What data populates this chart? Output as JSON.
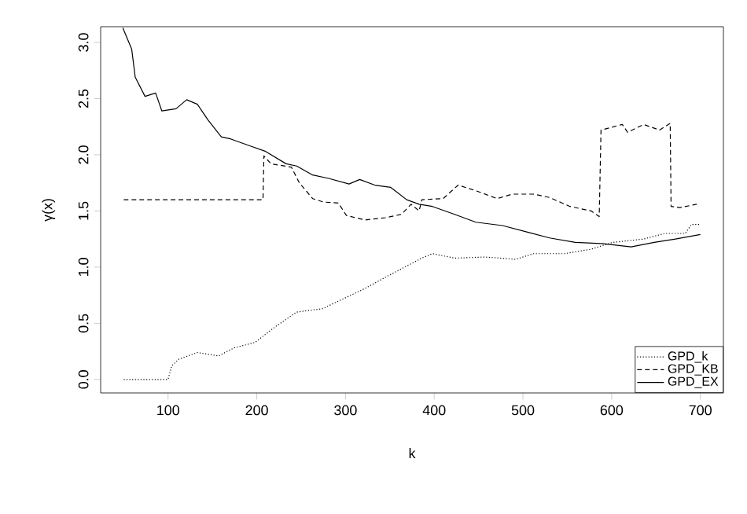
{
  "chart_data": {
    "type": "line",
    "xlabel": "k",
    "ylabel": "γ(x)",
    "xlim": [
      24,
      726
    ],
    "ylim": [
      -0.12,
      3.14
    ],
    "xticks": [
      100,
      200,
      300,
      400,
      500,
      600,
      700
    ],
    "yticks": [
      {
        "value": 0,
        "label": "0.0"
      },
      {
        "value": 0.5,
        "label": "0.5"
      },
      {
        "value": 1,
        "label": "1.0"
      },
      {
        "value": 1.5,
        "label": "1.5"
      },
      {
        "value": 2,
        "label": "2.0"
      },
      {
        "value": 2.5,
        "label": "2.5"
      },
      {
        "value": 3,
        "label": "3.0"
      }
    ],
    "grid": false,
    "legend": "bottom right",
    "marker": "none",
    "series": [
      {
        "name": "GPD_k",
        "color": "#000000",
        "line_style": "dotted",
        "x": [
          50,
          100,
          104,
          112,
          133,
          157,
          174,
          198,
          221,
          245,
          274,
          298,
          322,
          345,
          369,
          386,
          398,
          423,
          457,
          492,
          512,
          547,
          577,
          601,
          636,
          660,
          683,
          690,
          700
        ],
        "values": [
          0,
          0,
          0.12,
          0.18,
          0.24,
          0.21,
          0.28,
          0.33,
          0.47,
          0.6,
          0.63,
          0.72,
          0.81,
          0.91,
          1.01,
          1.08,
          1.12,
          1.08,
          1.09,
          1.07,
          1.12,
          1.12,
          1.16,
          1.22,
          1.25,
          1.3,
          1.3,
          1.38,
          1.38
        ]
      },
      {
        "name": "GPD_KB",
        "color": "#000000",
        "line_style": "dashed",
        "x": [
          50,
          207,
          208,
          216,
          239,
          248,
          263,
          275,
          292,
          301,
          322,
          345,
          363,
          374,
          383,
          386,
          410,
          427,
          447,
          471,
          488,
          512,
          530,
          553,
          577,
          586,
          588,
          612,
          618,
          636,
          654,
          666,
          667,
          677,
          696
        ],
        "values": [
          1.6,
          1.6,
          1.99,
          1.92,
          1.89,
          1.75,
          1.61,
          1.58,
          1.57,
          1.46,
          1.42,
          1.44,
          1.47,
          1.56,
          1.5,
          1.6,
          1.61,
          1.73,
          1.68,
          1.61,
          1.65,
          1.65,
          1.62,
          1.54,
          1.5,
          1.45,
          2.22,
          2.27,
          2.2,
          2.27,
          2.22,
          2.28,
          1.54,
          1.53,
          1.56
        ]
      },
      {
        "name": "GPD_EX",
        "color": "#000000",
        "line_style": "solid",
        "x": [
          49,
          59,
          63,
          74,
          86,
          93,
          109,
          121,
          133,
          145,
          160,
          171,
          192,
          210,
          233,
          245,
          263,
          281,
          304,
          316,
          333,
          351,
          369,
          383,
          398,
          423,
          447,
          477,
          506,
          530,
          559,
          589,
          622,
          648,
          672,
          700
        ],
        "values": [
          3.13,
          2.94,
          2.69,
          2.52,
          2.55,
          2.39,
          2.41,
          2.49,
          2.45,
          2.31,
          2.16,
          2.14,
          2.08,
          2.03,
          1.92,
          1.9,
          1.82,
          1.79,
          1.74,
          1.78,
          1.73,
          1.71,
          1.6,
          1.56,
          1.54,
          1.47,
          1.4,
          1.37,
          1.31,
          1.26,
          1.22,
          1.21,
          1.18,
          1.22,
          1.25,
          1.29
        ]
      }
    ]
  }
}
